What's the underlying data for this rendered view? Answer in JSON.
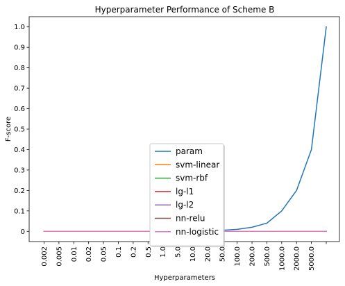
{
  "chart_data": {
    "type": "line",
    "title": "Hyperparameter Performance of Scheme B",
    "xlabel": "Hyperparameters",
    "ylabel": "F-score",
    "categories": [
      "0.002",
      "0.005",
      "0.01",
      "0.02",
      "0.05",
      "0.1",
      "0.2",
      "0.5",
      "1.0",
      "5.0",
      "10.0",
      "20.0",
      "50.0",
      "100.0",
      "200.0",
      "500.0",
      "1000.0",
      "2000.0",
      "5000.0",
      ""
    ],
    "ylim": [
      -0.05,
      1.05
    ],
    "yticks": [
      "0",
      "0.1",
      "0.2",
      "0.3",
      "0.4",
      "0.5",
      "0.6",
      "0.7",
      "0.8",
      "0.9",
      "1.0"
    ],
    "grid": false,
    "legend_position": "lower center",
    "series": [
      {
        "name": "param",
        "color": "#1f77b4",
        "values": [
          0,
          0,
          0,
          0,
          0,
          0,
          0,
          0,
          0,
          0,
          0,
          0,
          0.005,
          0.01,
          0.02,
          0.04,
          0.1,
          0.2,
          0.4,
          1.0
        ]
      },
      {
        "name": "svm-linear",
        "color": "#ff7f0e",
        "values": [
          0,
          0,
          0,
          0,
          0,
          0,
          0,
          0,
          0,
          0,
          0,
          0,
          0,
          0,
          0,
          0,
          0,
          0,
          0,
          0
        ]
      },
      {
        "name": "svm-rbf",
        "color": "#2ca02c",
        "values": [
          0,
          0,
          0,
          0,
          0,
          0,
          0,
          0,
          0,
          0,
          0,
          0,
          0,
          0,
          0,
          0,
          0,
          0,
          0,
          0
        ]
      },
      {
        "name": "lg-l1",
        "color": "#d62728",
        "values": [
          0,
          0,
          0,
          0,
          0,
          0,
          0,
          0,
          0,
          0,
          0,
          0,
          0,
          0,
          0,
          0,
          0,
          0,
          0,
          0
        ]
      },
      {
        "name": "lg-l2",
        "color": "#9467bd",
        "values": [
          0,
          0,
          0,
          0,
          0,
          0,
          0,
          0,
          0,
          0,
          0,
          0,
          0,
          0,
          0,
          0,
          0,
          0,
          0,
          0
        ]
      },
      {
        "name": "nn-relu",
        "color": "#8c564b",
        "values": [
          null,
          null,
          null,
          null,
          null,
          null,
          null,
          null,
          null,
          null,
          null,
          null,
          null,
          null,
          null,
          null,
          0,
          0,
          0,
          0
        ]
      },
      {
        "name": "nn-logistic",
        "color": "#e377c2",
        "values": [
          0,
          0,
          0,
          0,
          0,
          0,
          0,
          0,
          0,
          0,
          0,
          0,
          0,
          0,
          0,
          0,
          0,
          0,
          0,
          0
        ]
      }
    ]
  }
}
